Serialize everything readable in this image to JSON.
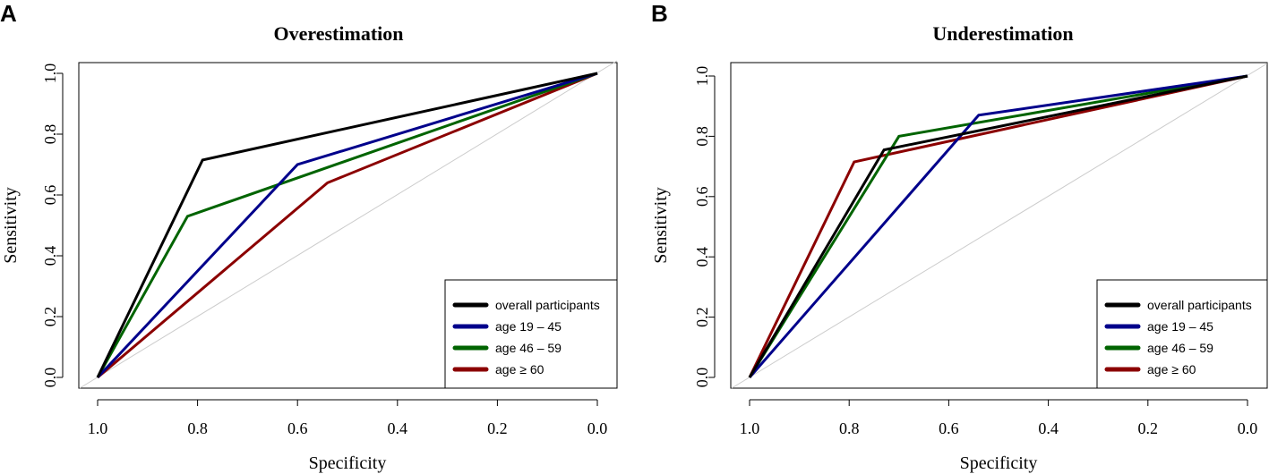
{
  "chart_data": [
    {
      "type": "line",
      "panel_label": "A",
      "title": "Overestimation",
      "xlabel": "Specificity",
      "ylabel": "Sensitivity",
      "xlim": [
        1.0,
        0.0
      ],
      "ylim": [
        0.0,
        1.0
      ],
      "xticks": [
        "1.0",
        "0.8",
        "0.6",
        "0.4",
        "0.2",
        "0.0"
      ],
      "yticks": [
        "0.0",
        "0.2",
        "0.4",
        "0.6",
        "0.8",
        "1.0"
      ],
      "legend_position": "bottom-right",
      "diagonal_color": "#cccccc",
      "series": [
        {
          "name": "overall participants",
          "color": "#000000",
          "points": [
            [
              1.0,
              0.0
            ],
            [
              0.79,
              0.715
            ],
            [
              0.0,
              1.0
            ]
          ]
        },
        {
          "name": "age 19 – 45",
          "color": "#00008b",
          "points": [
            [
              1.0,
              0.0
            ],
            [
              0.6,
              0.7
            ],
            [
              0.0,
              1.0
            ]
          ]
        },
        {
          "name": "age 46 – 59",
          "color": "#006400",
          "points": [
            [
              1.0,
              0.0
            ],
            [
              0.82,
              0.53
            ],
            [
              0.0,
              1.0
            ]
          ]
        },
        {
          "name": "age ≥ 60",
          "color": "#8b0000",
          "points": [
            [
              1.0,
              0.0
            ],
            [
              0.54,
              0.64
            ],
            [
              0.0,
              1.0
            ]
          ]
        }
      ]
    },
    {
      "type": "line",
      "panel_label": "B",
      "title": "Underestimation",
      "xlabel": "Specificity",
      "ylabel": "Sensitivity",
      "xlim": [
        1.0,
        0.0
      ],
      "ylim": [
        0.0,
        1.0
      ],
      "xticks": [
        "1.0",
        "0.8",
        "0.6",
        "0.4",
        "0.2",
        "0.0"
      ],
      "yticks": [
        "0.0",
        "0.2",
        "0.4",
        "0.6",
        "0.8",
        "1.0"
      ],
      "legend_position": "bottom-right",
      "diagonal_color": "#cccccc",
      "series": [
        {
          "name": "overall participants",
          "color": "#000000",
          "points": [
            [
              1.0,
              0.0
            ],
            [
              0.73,
              0.755
            ],
            [
              0.0,
              1.0
            ]
          ]
        },
        {
          "name": "age 19 – 45",
          "color": "#00008b",
          "points": [
            [
              1.0,
              0.0
            ],
            [
              0.54,
              0.87
            ],
            [
              0.0,
              1.0
            ]
          ]
        },
        {
          "name": "age 46 – 59",
          "color": "#006400",
          "points": [
            [
              1.0,
              0.0
            ],
            [
              0.7,
              0.8
            ],
            [
              0.0,
              1.0
            ]
          ]
        },
        {
          "name": "age ≥ 60",
          "color": "#8b0000",
          "points": [
            [
              1.0,
              0.0
            ],
            [
              0.79,
              0.715
            ],
            [
              0.0,
              1.0
            ]
          ]
        }
      ]
    }
  ]
}
